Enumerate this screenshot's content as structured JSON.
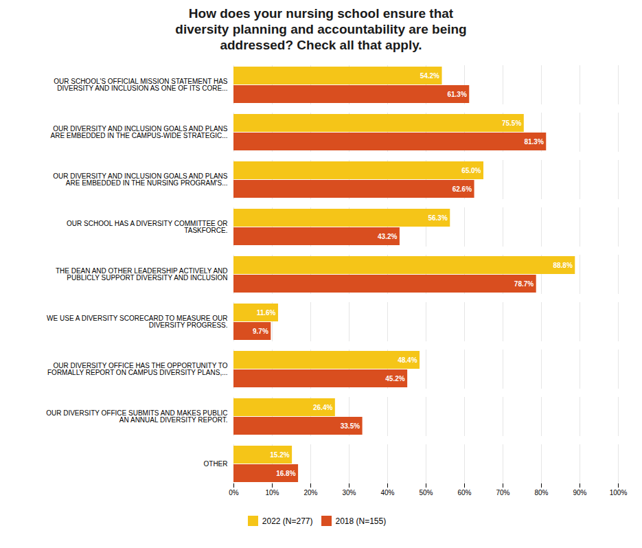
{
  "chart_data": {
    "type": "bar",
    "orientation": "horizontal",
    "title": "How does your nursing school ensure that\ndiversity planning and accountability are being\naddressed? Check all that apply.",
    "categories": [
      "OUR SCHOOL'S OFFICIAL MISSION STATEMENT HAS\nDIVERSITY AND INCLUSION AS ONE OF ITS CORE...",
      "OUR DIVERSITY AND INCLUSION GOALS AND PLANS\nARE EMBEDDED IN THE CAMPUS-WIDE STRATEGIC...",
      "OUR DIVERSITY AND INCLUSION GOALS AND PLANS\nARE EMBEDDED IN THE NURSING PROGRAM'S...",
      "OUR SCHOOL HAS A DIVERSITY COMMITTEE OR\nTASKFORCE.",
      "THE DEAN AND OTHER LEADERSHIP ACTIVELY AND\nPUBLICLY SUPPORT DIVERSITY AND INCLUSION",
      "WE USE A DIVERSITY SCORECARD TO MEASURE OUR\nDIVERSITY PROGRESS.",
      "OUR DIVERSITY OFFICE HAS THE OPPORTUNITY TO\nFORMALLY REPORT ON CAMPUS DIVERSITY PLANS,...",
      "OUR DIVERSITY OFFICE SUBMITS AND MAKES PUBLIC\nAN ANNUAL DIVERSITY REPORT.",
      "OTHER"
    ],
    "series": [
      {
        "name": "2022 (N=277)",
        "color": "#F5C518",
        "values": [
          54.2,
          75.5,
          65.0,
          56.3,
          88.8,
          11.6,
          48.4,
          26.4,
          15.2
        ],
        "value_labels": [
          "54.2%",
          "75.5%",
          "65.0%",
          "56.3%",
          "88.8%",
          "11.6%",
          "48.4%",
          "26.4%",
          "15.2%"
        ]
      },
      {
        "name": "2018 (N=155)",
        "color": "#D94E1F",
        "values": [
          61.3,
          81.3,
          62.6,
          43.2,
          78.7,
          9.7,
          45.2,
          33.5,
          16.8
        ],
        "value_labels": [
          "61.3%",
          "81.3%",
          "62.6%",
          "43.2%",
          "78.7%",
          "9.7%",
          "45.2%",
          "33.5%",
          "16.8%"
        ]
      }
    ],
    "xlim": [
      0,
      100
    ],
    "xticks": [
      {
        "value": 0,
        "label": "0%"
      },
      {
        "value": 10,
        "label": "10%"
      },
      {
        "value": 20,
        "label": "20%"
      },
      {
        "value": 30,
        "label": "30%"
      },
      {
        "value": 40,
        "label": "40%"
      },
      {
        "value": 50,
        "label": "50%"
      },
      {
        "value": 60,
        "label": "60%"
      },
      {
        "value": 70,
        "label": "70%"
      },
      {
        "value": 80,
        "label": "80%"
      },
      {
        "value": 90,
        "label": "90%"
      },
      {
        "value": 100,
        "label": "100%"
      }
    ],
    "grid": true,
    "legend": "bottom",
    "data_labels": true
  }
}
